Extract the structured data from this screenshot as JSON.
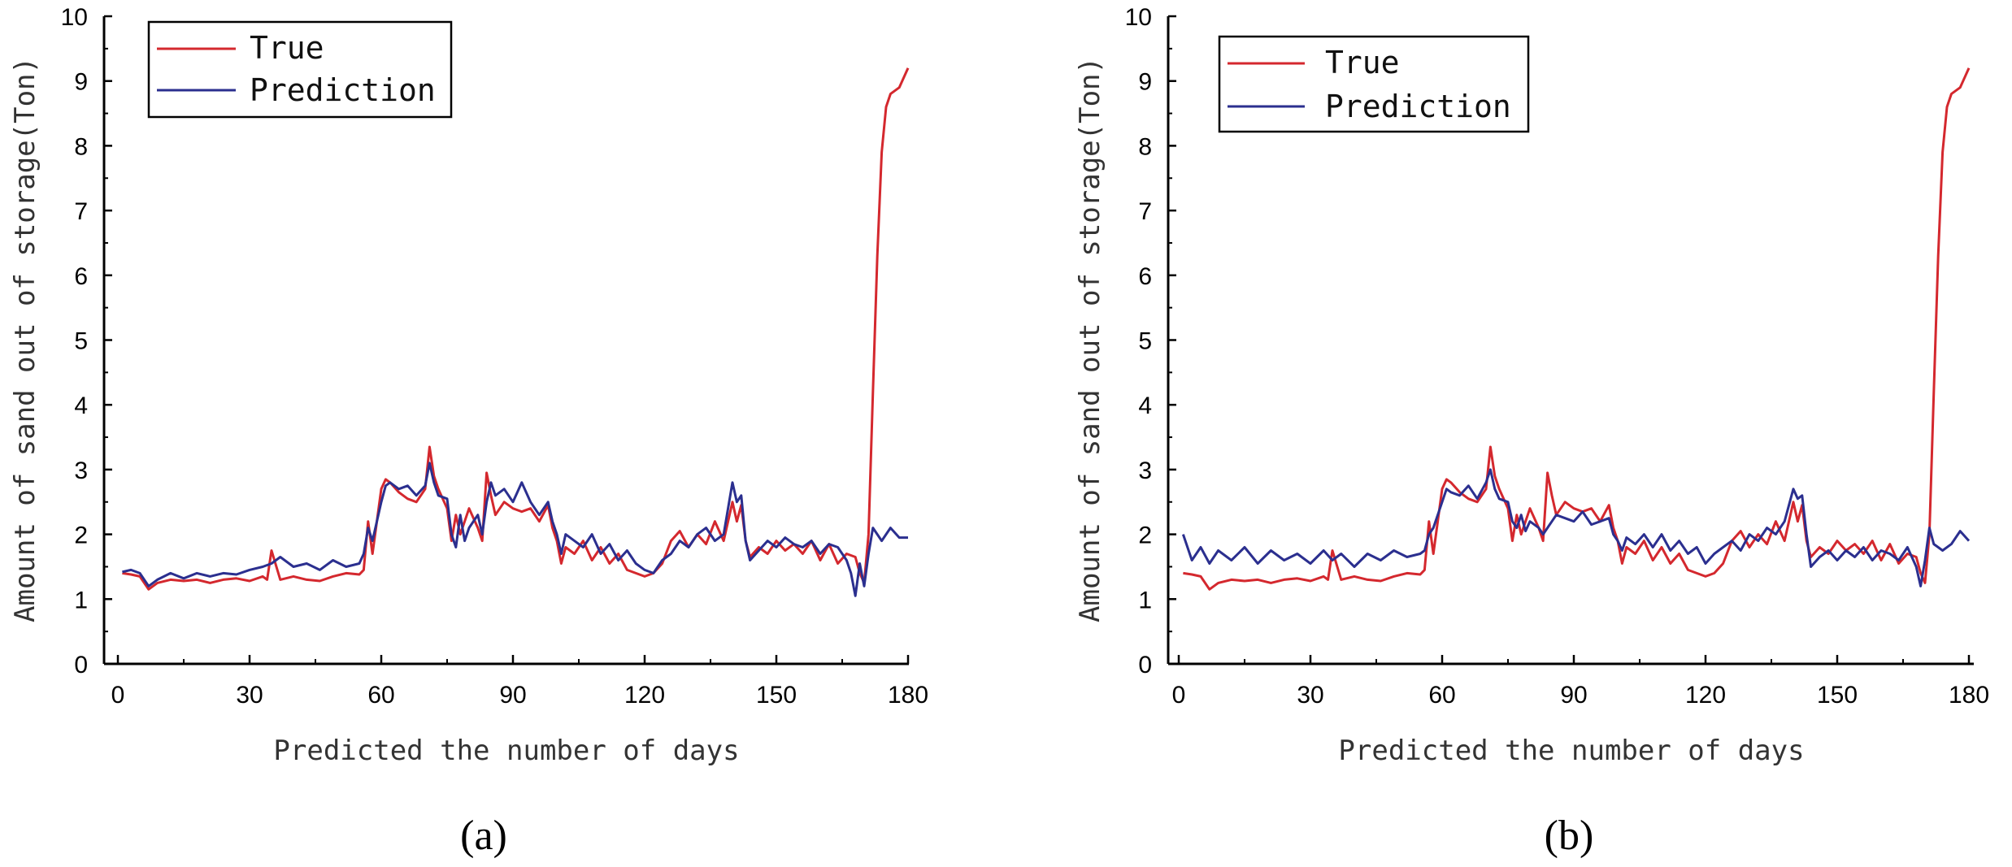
{
  "figure": {
    "panels": [
      "(a)",
      "(b)"
    ]
  },
  "colors": {
    "true_series": "#d4282e",
    "prediction_series": "#2b2f8f",
    "axis": "#000000"
  },
  "chart_data": [
    {
      "type": "line",
      "panel_label": "(a)",
      "title": "",
      "xlabel": "Predicted the number of days",
      "ylabel": "Amount of sand out of storage(Ton)",
      "xlim": [
        0,
        180
      ],
      "ylim": [
        0,
        10
      ],
      "xticks": [
        0,
        30,
        60,
        90,
        120,
        150,
        180
      ],
      "yticks": [
        0,
        1,
        2,
        3,
        4,
        5,
        6,
        7,
        8,
        9,
        10
      ],
      "grid": false,
      "legend_position": "top-left",
      "series": [
        {
          "name": "True",
          "x": [
            1,
            3,
            5,
            7,
            9,
            12,
            15,
            18,
            21,
            24,
            27,
            30,
            33,
            34,
            35,
            37,
            40,
            43,
            46,
            49,
            52,
            55,
            56,
            57,
            58,
            60,
            61,
            62,
            64,
            66,
            68,
            70,
            71,
            72,
            73,
            75,
            76,
            77,
            78,
            79,
            80,
            82,
            83,
            84,
            85,
            86,
            88,
            90,
            92,
            94,
            96,
            98,
            99,
            100,
            101,
            102,
            104,
            106,
            108,
            110,
            112,
            114,
            116,
            118,
            120,
            122,
            124,
            126,
            128,
            130,
            132,
            134,
            136,
            138,
            140,
            141,
            142,
            143,
            144,
            146,
            148,
            150,
            152,
            154,
            156,
            158,
            160,
            162,
            164,
            166,
            168,
            169,
            170,
            171,
            172,
            173,
            174,
            175,
            176,
            178,
            180
          ],
          "y": [
            1.4,
            1.38,
            1.35,
            1.15,
            1.25,
            1.3,
            1.28,
            1.3,
            1.25,
            1.3,
            1.32,
            1.28,
            1.35,
            1.3,
            1.75,
            1.3,
            1.35,
            1.3,
            1.28,
            1.35,
            1.4,
            1.38,
            1.45,
            2.2,
            1.7,
            2.7,
            2.85,
            2.8,
            2.65,
            2.55,
            2.5,
            2.7,
            3.35,
            2.9,
            2.7,
            2.4,
            1.9,
            2.3,
            2.0,
            2.2,
            2.4,
            2.1,
            1.9,
            2.95,
            2.6,
            2.3,
            2.5,
            2.4,
            2.35,
            2.4,
            2.2,
            2.45,
            2.1,
            1.9,
            1.55,
            1.8,
            1.7,
            1.9,
            1.6,
            1.8,
            1.55,
            1.7,
            1.45,
            1.4,
            1.35,
            1.4,
            1.55,
            1.9,
            2.05,
            1.8,
            2.0,
            1.85,
            2.2,
            1.9,
            2.5,
            2.2,
            2.45,
            1.9,
            1.65,
            1.8,
            1.7,
            1.9,
            1.75,
            1.85,
            1.7,
            1.9,
            1.6,
            1.85,
            1.55,
            1.7,
            1.65,
            1.4,
            1.25,
            2.0,
            4.2,
            6.3,
            7.9,
            8.6,
            8.8,
            8.9,
            9.2
          ]
        },
        {
          "name": "Prediction",
          "x": [
            1,
            3,
            5,
            7,
            9,
            12,
            15,
            18,
            21,
            24,
            27,
            30,
            33,
            35,
            37,
            40,
            43,
            46,
            49,
            52,
            55,
            56,
            57,
            58,
            60,
            61,
            62,
            64,
            66,
            68,
            70,
            71,
            72,
            73,
            75,
            76,
            77,
            78,
            79,
            80,
            82,
            83,
            84,
            85,
            86,
            88,
            90,
            92,
            94,
            96,
            98,
            99,
            100,
            101,
            102,
            104,
            106,
            108,
            110,
            112,
            114,
            116,
            118,
            120,
            122,
            124,
            126,
            128,
            130,
            132,
            134,
            136,
            138,
            140,
            141,
            142,
            143,
            144,
            146,
            148,
            150,
            152,
            154,
            156,
            158,
            160,
            162,
            164,
            166,
            167,
            168,
            169,
            170,
            171,
            172,
            173,
            174,
            176,
            178,
            180
          ],
          "y": [
            1.42,
            1.45,
            1.4,
            1.2,
            1.3,
            1.4,
            1.32,
            1.4,
            1.35,
            1.4,
            1.38,
            1.45,
            1.5,
            1.55,
            1.65,
            1.5,
            1.55,
            1.45,
            1.6,
            1.5,
            1.55,
            1.7,
            2.1,
            1.9,
            2.5,
            2.75,
            2.8,
            2.7,
            2.75,
            2.6,
            2.75,
            3.1,
            2.8,
            2.6,
            2.55,
            2.0,
            1.8,
            2.3,
            1.9,
            2.1,
            2.3,
            2.0,
            2.5,
            2.8,
            2.6,
            2.7,
            2.5,
            2.8,
            2.5,
            2.3,
            2.5,
            2.2,
            2.0,
            1.7,
            2.0,
            1.9,
            1.8,
            2.0,
            1.7,
            1.85,
            1.6,
            1.75,
            1.55,
            1.45,
            1.4,
            1.6,
            1.7,
            1.9,
            1.8,
            2.0,
            2.1,
            1.9,
            2.0,
            2.8,
            2.5,
            2.6,
            1.9,
            1.6,
            1.75,
            1.9,
            1.8,
            1.95,
            1.85,
            1.8,
            1.9,
            1.7,
            1.85,
            1.8,
            1.6,
            1.4,
            1.05,
            1.55,
            1.2,
            1.7,
            2.1,
            2.0,
            1.9,
            2.1,
            1.95,
            1.95
          ]
        }
      ]
    },
    {
      "type": "line",
      "panel_label": "(b)",
      "title": "",
      "xlabel": "Predicted the number of days",
      "ylabel": "Amount of sand out of storage(Ton)",
      "xlim": [
        0,
        180
      ],
      "ylim": [
        0,
        10
      ],
      "xticks": [
        0,
        30,
        60,
        90,
        120,
        150,
        180
      ],
      "yticks": [
        0,
        1,
        2,
        3,
        4,
        5,
        6,
        7,
        8,
        9,
        10
      ],
      "grid": false,
      "legend_position": "top-left",
      "series": [
        {
          "name": "True",
          "x": [
            1,
            3,
            5,
            7,
            9,
            12,
            15,
            18,
            21,
            24,
            27,
            30,
            33,
            34,
            35,
            37,
            40,
            43,
            46,
            49,
            52,
            55,
            56,
            57,
            58,
            60,
            61,
            62,
            64,
            66,
            68,
            70,
            71,
            72,
            73,
            75,
            76,
            77,
            78,
            79,
            80,
            82,
            83,
            84,
            85,
            86,
            88,
            90,
            92,
            94,
            96,
            98,
            99,
            100,
            101,
            102,
            104,
            106,
            108,
            110,
            112,
            114,
            116,
            118,
            120,
            122,
            124,
            126,
            128,
            130,
            132,
            134,
            136,
            138,
            140,
            141,
            142,
            143,
            144,
            146,
            148,
            150,
            152,
            154,
            156,
            158,
            160,
            162,
            164,
            166,
            168,
            169,
            170,
            171,
            172,
            173,
            174,
            175,
            176,
            178,
            180
          ],
          "y": [
            1.4,
            1.38,
            1.35,
            1.15,
            1.25,
            1.3,
            1.28,
            1.3,
            1.25,
            1.3,
            1.32,
            1.28,
            1.35,
            1.3,
            1.75,
            1.3,
            1.35,
            1.3,
            1.28,
            1.35,
            1.4,
            1.38,
            1.45,
            2.2,
            1.7,
            2.7,
            2.85,
            2.8,
            2.65,
            2.55,
            2.5,
            2.7,
            3.35,
            2.9,
            2.7,
            2.4,
            1.9,
            2.3,
            2.0,
            2.2,
            2.4,
            2.1,
            1.9,
            2.95,
            2.6,
            2.3,
            2.5,
            2.4,
            2.35,
            2.4,
            2.2,
            2.45,
            2.1,
            1.9,
            1.55,
            1.8,
            1.7,
            1.9,
            1.6,
            1.8,
            1.55,
            1.7,
            1.45,
            1.4,
            1.35,
            1.4,
            1.55,
            1.9,
            2.05,
            1.8,
            2.0,
            1.85,
            2.2,
            1.9,
            2.5,
            2.2,
            2.45,
            1.9,
            1.65,
            1.8,
            1.7,
            1.9,
            1.75,
            1.85,
            1.7,
            1.9,
            1.6,
            1.85,
            1.55,
            1.7,
            1.65,
            1.4,
            1.25,
            2.0,
            4.2,
            6.3,
            7.9,
            8.6,
            8.8,
            8.9,
            9.2
          ]
        },
        {
          "name": "Prediction",
          "x": [
            1,
            3,
            5,
            7,
            9,
            12,
            15,
            18,
            21,
            24,
            27,
            30,
            33,
            35,
            37,
            40,
            43,
            46,
            49,
            52,
            55,
            56,
            57,
            58,
            60,
            61,
            62,
            64,
            66,
            68,
            70,
            71,
            72,
            73,
            75,
            76,
            77,
            78,
            79,
            80,
            82,
            83,
            84,
            85,
            86,
            88,
            90,
            92,
            94,
            96,
            98,
            99,
            100,
            101,
            102,
            104,
            106,
            108,
            110,
            112,
            114,
            116,
            118,
            120,
            122,
            124,
            126,
            128,
            130,
            132,
            134,
            136,
            138,
            140,
            141,
            142,
            143,
            144,
            146,
            148,
            150,
            152,
            154,
            156,
            158,
            160,
            162,
            164,
            166,
            168,
            169,
            170,
            171,
            172,
            173,
            174,
            176,
            178,
            180
          ],
          "y": [
            2.0,
            1.6,
            1.8,
            1.55,
            1.75,
            1.6,
            1.8,
            1.55,
            1.75,
            1.6,
            1.7,
            1.55,
            1.75,
            1.6,
            1.7,
            1.5,
            1.7,
            1.6,
            1.75,
            1.65,
            1.7,
            1.75,
            2.0,
            2.1,
            2.5,
            2.7,
            2.65,
            2.6,
            2.75,
            2.55,
            2.8,
            3.0,
            2.7,
            2.55,
            2.5,
            2.2,
            2.1,
            2.3,
            2.05,
            2.2,
            2.1,
            2.0,
            2.1,
            2.2,
            2.3,
            2.25,
            2.2,
            2.35,
            2.15,
            2.2,
            2.25,
            2.0,
            1.9,
            1.75,
            1.95,
            1.85,
            2.0,
            1.8,
            2.0,
            1.75,
            1.9,
            1.7,
            1.8,
            1.55,
            1.7,
            1.8,
            1.9,
            1.75,
            2.0,
            1.9,
            2.1,
            2.0,
            2.2,
            2.7,
            2.55,
            2.6,
            2.0,
            1.5,
            1.65,
            1.75,
            1.6,
            1.75,
            1.65,
            1.8,
            1.6,
            1.75,
            1.7,
            1.6,
            1.8,
            1.5,
            1.2,
            1.6,
            2.1,
            1.85,
            1.8,
            1.75,
            1.85,
            2.05,
            1.9
          ]
        }
      ]
    }
  ]
}
